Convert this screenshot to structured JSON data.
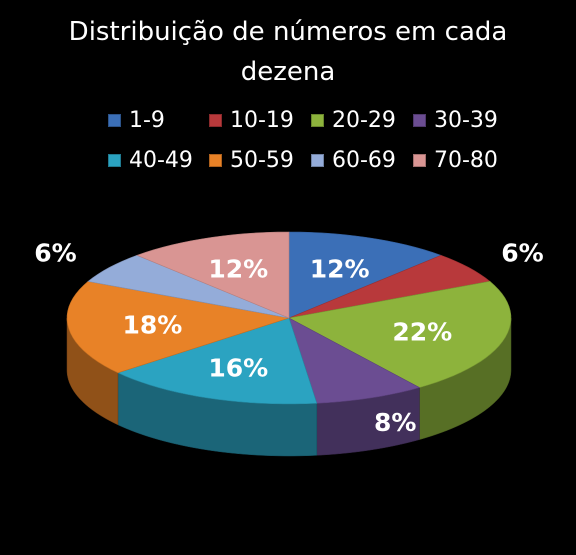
{
  "chart_data": {
    "type": "pie",
    "title_lines": [
      "Distribuição de números em cada",
      "dezena"
    ],
    "categories": [
      "1-9",
      "10-19",
      "20-29",
      "30-39",
      "40-49",
      "50-59",
      "60-69",
      "70-80"
    ],
    "values": [
      12,
      6,
      22,
      8,
      16,
      18,
      6,
      12
    ],
    "labels": [
      "12%",
      "6%",
      "22%",
      "8%",
      "16%",
      "18%",
      "6%",
      "12%"
    ],
    "colors": [
      "#3B6FB7",
      "#B8393B",
      "#8DB33C",
      "#6B4D92",
      "#2BA3C1",
      "#E88227",
      "#94ACD9",
      "#D99593"
    ],
    "legend_position": "top",
    "style": "3d-pie"
  }
}
